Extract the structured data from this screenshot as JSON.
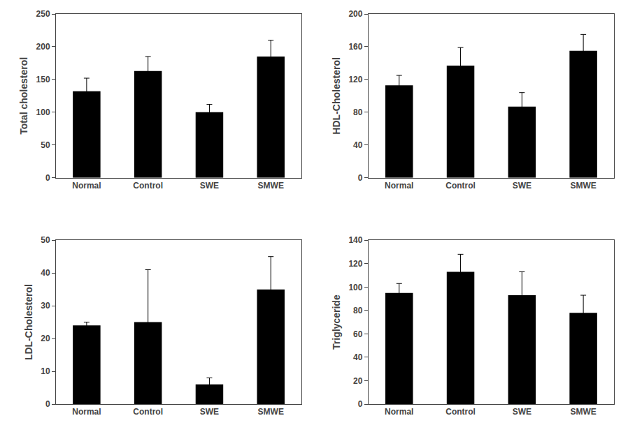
{
  "chart_data": [
    {
      "type": "bar",
      "categories": [
        "Normal",
        "Control",
        "SWE",
        "SMWE"
      ],
      "ylabel": "Total cholesterol",
      "values": [
        132,
        163,
        100,
        185
      ],
      "errors": [
        20,
        22,
        12,
        25
      ],
      "color": "#000000",
      "ylim": [
        0,
        250
      ],
      "yticks": [
        0,
        50,
        100,
        150,
        200,
        250
      ],
      "grid": false
    },
    {
      "type": "bar",
      "categories": [
        "Normal",
        "Control",
        "SWE",
        "SMWE"
      ],
      "ylabel": "HDL-Cholesterol",
      "values": [
        113,
        137,
        87,
        155
      ],
      "errors": [
        12,
        22,
        17,
        20
      ],
      "color": "#000000",
      "ylim": [
        0,
        200
      ],
      "yticks": [
        0,
        40,
        80,
        120,
        160,
        200
      ],
      "grid": false
    },
    {
      "type": "bar",
      "categories": [
        "Normal",
        "Control",
        "SWE",
        "SMWE"
      ],
      "ylabel": "LDL-Cholesterol",
      "values": [
        24,
        25,
        6,
        35
      ],
      "errors": [
        1,
        16,
        2,
        10
      ],
      "color": "#000000",
      "ylim": [
        0,
        50
      ],
      "yticks": [
        0,
        10,
        20,
        30,
        40,
        50
      ],
      "grid": false
    },
    {
      "type": "bar",
      "categories": [
        "Normal",
        "Control",
        "SWE",
        "SMWE"
      ],
      "ylabel": "Triglyceride",
      "values": [
        95,
        113,
        93,
        78
      ],
      "errors": [
        8,
        15,
        20,
        15
      ],
      "color": "#000000",
      "ylim": [
        0,
        140
      ],
      "yticks": [
        0,
        20,
        40,
        60,
        80,
        100,
        120,
        140
      ],
      "grid": false
    }
  ]
}
